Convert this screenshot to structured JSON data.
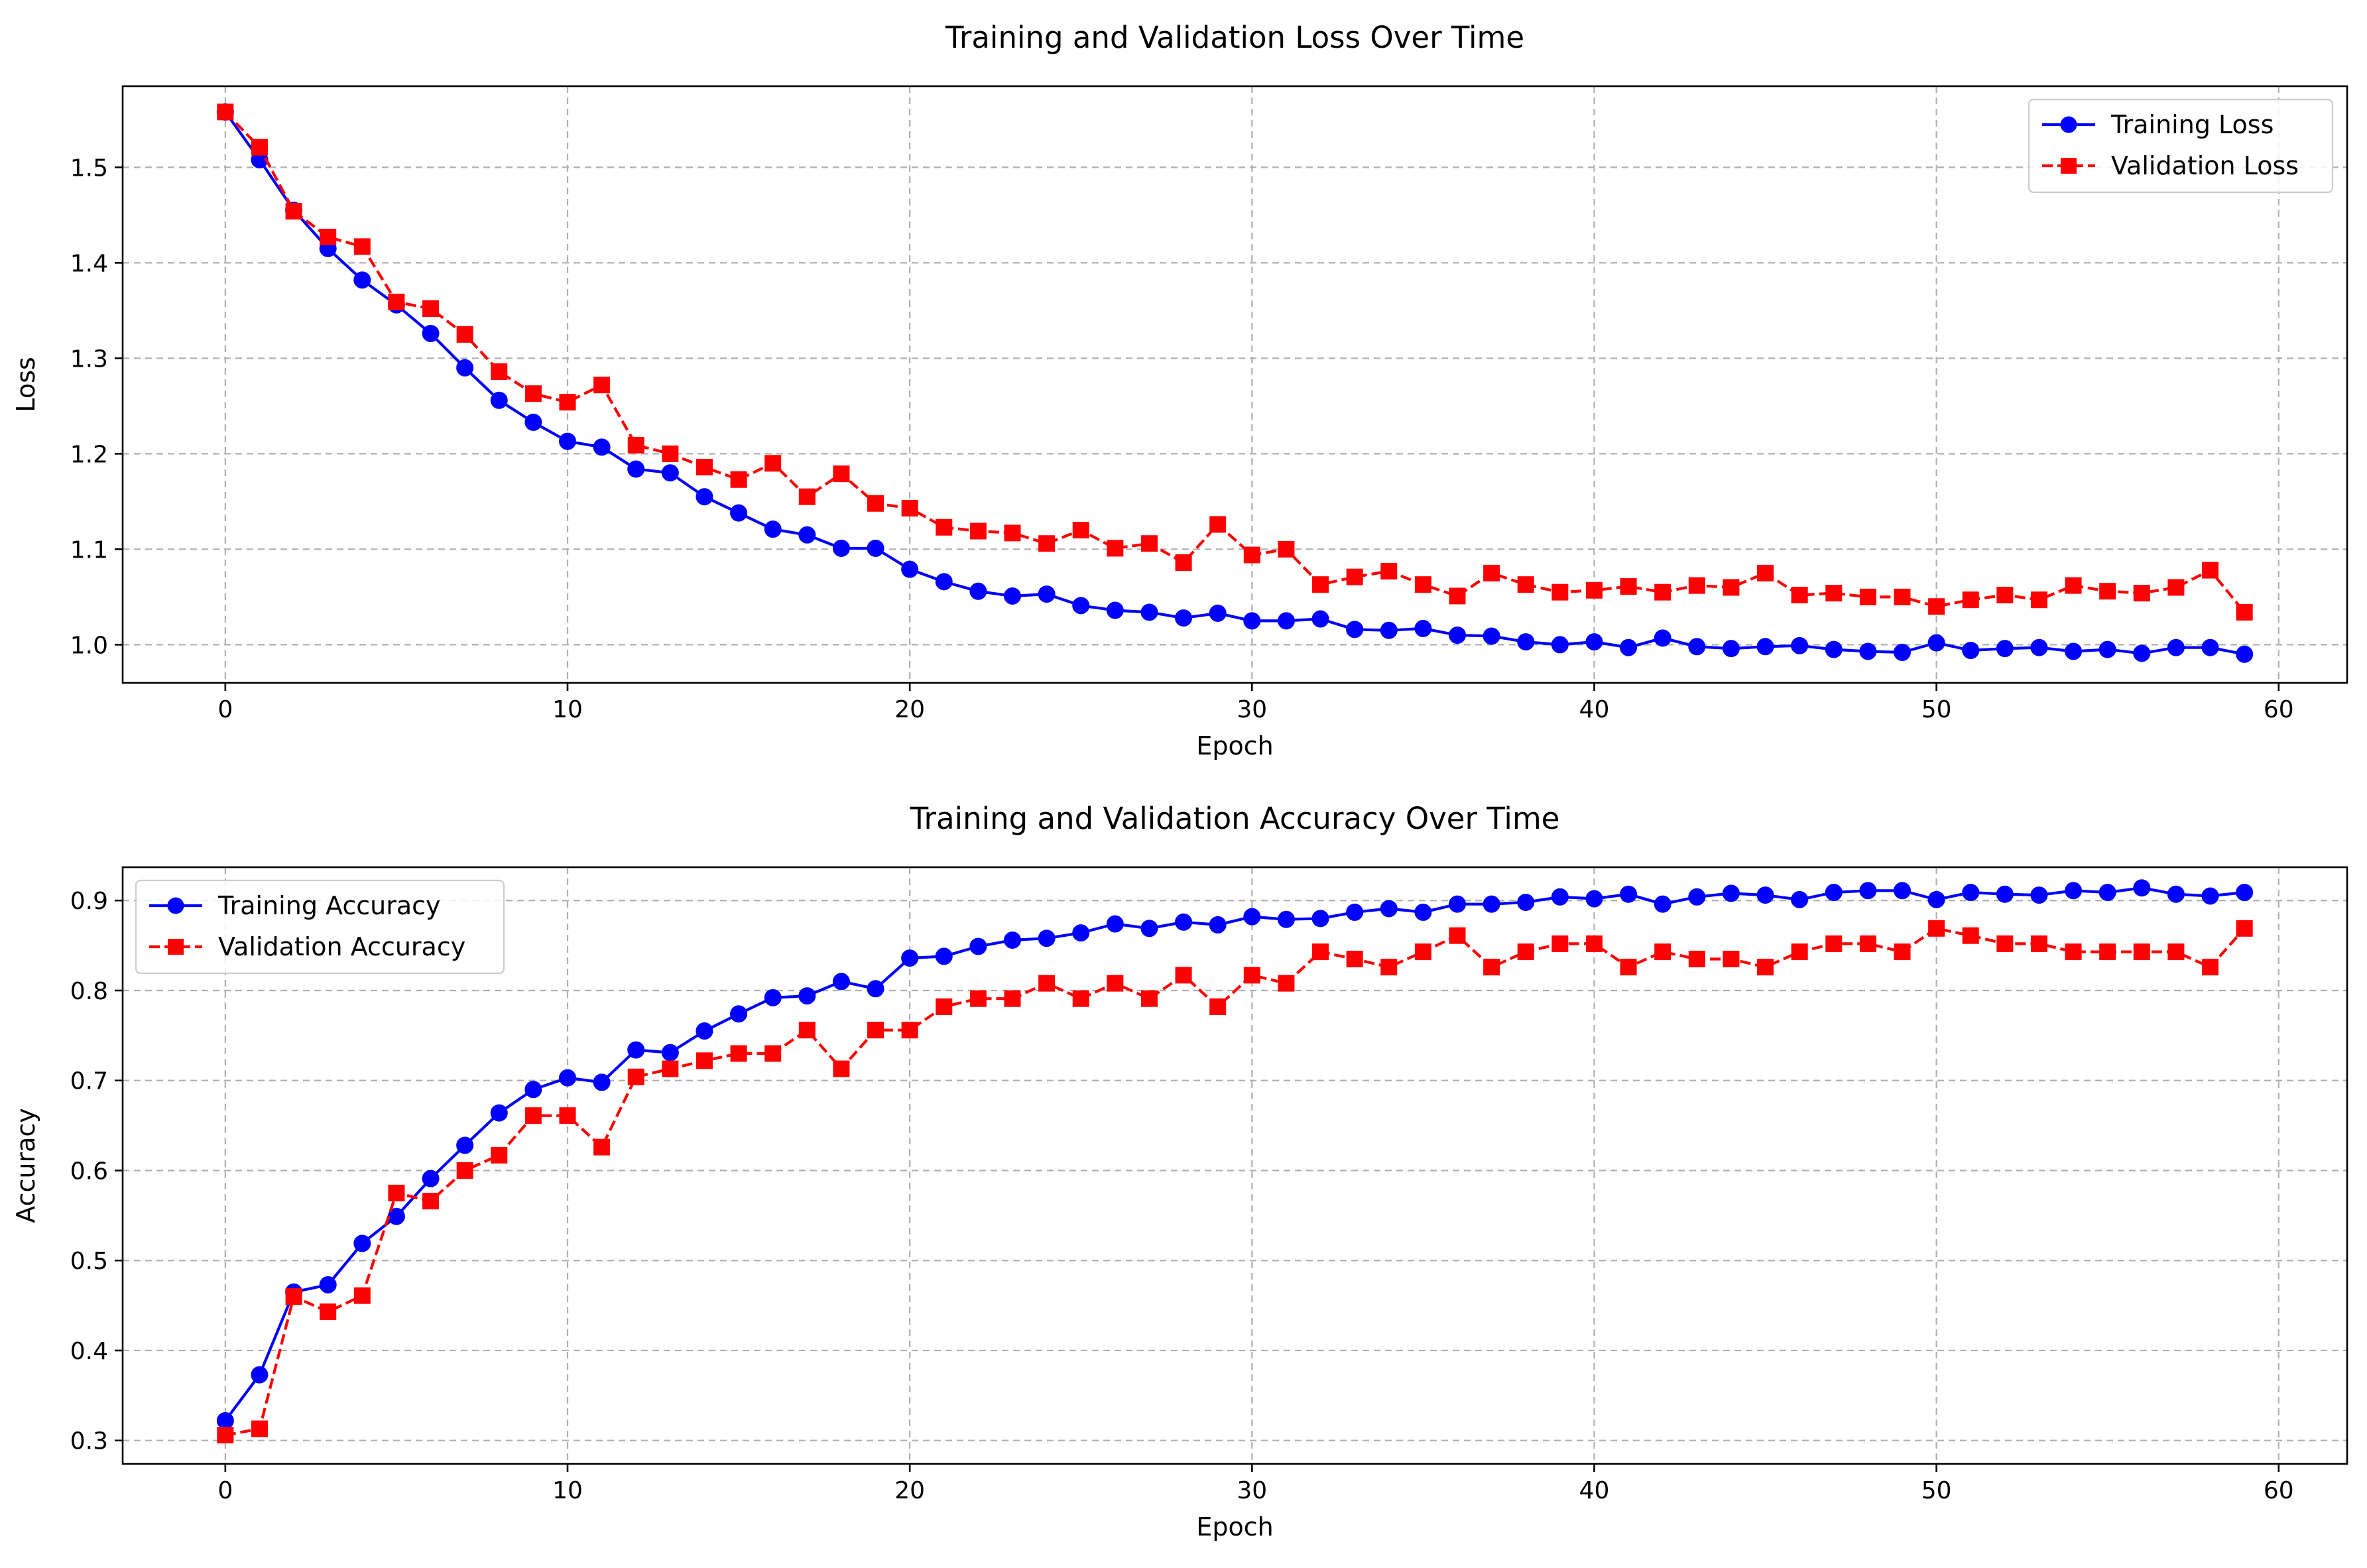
{
  "chart_data": [
    {
      "type": "line",
      "title": "Training and Validation Loss Over Time",
      "xlabel": "Epoch",
      "ylabel": "Loss",
      "xlim": [
        -3,
        62
      ],
      "ylim": [
        0.96,
        1.585
      ],
      "xticks": [
        0,
        10,
        20,
        30,
        40,
        50,
        60
      ],
      "yticks": [
        1.0,
        1.1,
        1.2,
        1.3,
        1.4,
        1.5
      ],
      "ytick_labels": [
        "1.0",
        "1.1",
        "1.2",
        "1.3",
        "1.4",
        "1.5"
      ],
      "grid": true,
      "legend_position": "top-right",
      "x": [
        0,
        1,
        2,
        3,
        4,
        5,
        6,
        7,
        8,
        9,
        10,
        11,
        12,
        13,
        14,
        15,
        16,
        17,
        18,
        19,
        20,
        21,
        22,
        23,
        24,
        25,
        26,
        27,
        28,
        29,
        30,
        31,
        32,
        33,
        34,
        35,
        36,
        37,
        38,
        39,
        40,
        41,
        42,
        43,
        44,
        45,
        46,
        47,
        48,
        49,
        50,
        51,
        52,
        53,
        54,
        55,
        56,
        57,
        58,
        59
      ],
      "series": [
        {
          "name": "Training Loss",
          "color": "#0000ff",
          "marker": "circle",
          "linestyle": "solid",
          "values": [
            1.558,
            1.508,
            1.455,
            1.415,
            1.382,
            1.356,
            1.326,
            1.29,
            1.256,
            1.233,
            1.213,
            1.207,
            1.184,
            1.18,
            1.155,
            1.138,
            1.121,
            1.115,
            1.101,
            1.101,
            1.079,
            1.066,
            1.056,
            1.051,
            1.053,
            1.041,
            1.036,
            1.034,
            1.028,
            1.033,
            1.025,
            1.025,
            1.027,
            1.016,
            1.015,
            1.017,
            1.01,
            1.009,
            1.003,
            1.0,
            1.003,
            0.997,
            1.007,
            0.998,
            0.996,
            0.998,
            0.999,
            0.995,
            0.993,
            0.992,
            1.002,
            0.994,
            0.996,
            0.997,
            0.993,
            0.995,
            0.991,
            0.997,
            0.997,
            0.99
          ]
        },
        {
          "name": "Validation Loss",
          "color": "#ff0000",
          "marker": "square",
          "linestyle": "dashed",
          "values": [
            1.558,
            1.521,
            1.454,
            1.427,
            1.417,
            1.359,
            1.352,
            1.325,
            1.286,
            1.263,
            1.254,
            1.272,
            1.209,
            1.2,
            1.186,
            1.173,
            1.19,
            1.155,
            1.179,
            1.148,
            1.143,
            1.123,
            1.119,
            1.117,
            1.106,
            1.12,
            1.101,
            1.106,
            1.086,
            1.126,
            1.094,
            1.1,
            1.063,
            1.071,
            1.077,
            1.063,
            1.051,
            1.075,
            1.063,
            1.055,
            1.057,
            1.061,
            1.055,
            1.062,
            1.06,
            1.075,
            1.052,
            1.054,
            1.05,
            1.05,
            1.04,
            1.047,
            1.052,
            1.047,
            1.062,
            1.056,
            1.054,
            1.06,
            1.078,
            1.034
          ]
        }
      ]
    },
    {
      "type": "line",
      "title": "Training and Validation Accuracy Over Time",
      "xlabel": "Epoch",
      "ylabel": "Accuracy",
      "xlim": [
        -3,
        62
      ],
      "ylim": [
        0.274,
        0.937
      ],
      "xticks": [
        0,
        10,
        20,
        30,
        40,
        50,
        60
      ],
      "yticks": [
        0.3,
        0.4,
        0.5,
        0.6,
        0.7,
        0.8,
        0.9
      ],
      "ytick_labels": [
        "0.3",
        "0.4",
        "0.5",
        "0.6",
        "0.7",
        "0.8",
        "0.9"
      ],
      "grid": true,
      "legend_position": "top-left",
      "x": [
        0,
        1,
        2,
        3,
        4,
        5,
        6,
        7,
        8,
        9,
        10,
        11,
        12,
        13,
        14,
        15,
        16,
        17,
        18,
        19,
        20,
        21,
        22,
        23,
        24,
        25,
        26,
        27,
        28,
        29,
        30,
        31,
        32,
        33,
        34,
        35,
        36,
        37,
        38,
        39,
        40,
        41,
        42,
        43,
        44,
        45,
        46,
        47,
        48,
        49,
        50,
        51,
        52,
        53,
        54,
        55,
        56,
        57,
        58,
        59
      ],
      "series": [
        {
          "name": "Training Accuracy",
          "color": "#0000ff",
          "marker": "circle",
          "linestyle": "solid",
          "values": [
            0.322,
            0.373,
            0.465,
            0.473,
            0.519,
            0.549,
            0.591,
            0.628,
            0.664,
            0.69,
            0.703,
            0.698,
            0.734,
            0.731,
            0.755,
            0.774,
            0.792,
            0.794,
            0.81,
            0.802,
            0.836,
            0.838,
            0.849,
            0.856,
            0.858,
            0.864,
            0.874,
            0.869,
            0.876,
            0.873,
            0.882,
            0.879,
            0.88,
            0.887,
            0.891,
            0.887,
            0.896,
            0.896,
            0.898,
            0.904,
            0.902,
            0.907,
            0.896,
            0.904,
            0.908,
            0.906,
            0.901,
            0.909,
            0.911,
            0.911,
            0.901,
            0.909,
            0.907,
            0.906,
            0.911,
            0.909,
            0.914,
            0.907,
            0.905,
            0.909
          ]
        },
        {
          "name": "Validation Accuracy",
          "color": "#ff0000",
          "marker": "square",
          "linestyle": "dashed",
          "values": [
            0.306,
            0.313,
            0.46,
            0.443,
            0.461,
            0.575,
            0.566,
            0.6,
            0.617,
            0.661,
            0.661,
            0.626,
            0.704,
            0.713,
            0.722,
            0.73,
            0.73,
            0.756,
            0.713,
            0.756,
            0.756,
            0.782,
            0.791,
            0.791,
            0.808,
            0.791,
            0.808,
            0.791,
            0.817,
            0.782,
            0.817,
            0.808,
            0.843,
            0.835,
            0.826,
            0.843,
            0.861,
            0.826,
            0.843,
            0.852,
            0.852,
            0.826,
            0.843,
            0.835,
            0.835,
            0.826,
            0.843,
            0.852,
            0.852,
            0.843,
            0.869,
            0.861,
            0.852,
            0.852,
            0.843,
            0.843,
            0.843,
            0.843,
            0.826,
            0.869
          ]
        }
      ]
    }
  ]
}
